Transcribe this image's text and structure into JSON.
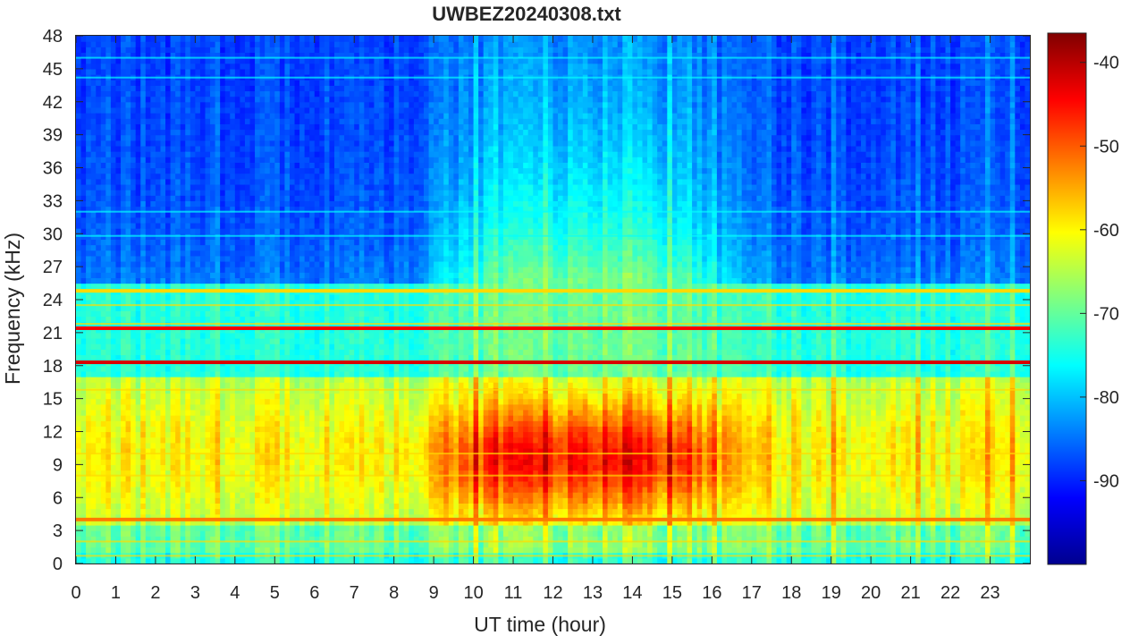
{
  "chart_data": {
    "type": "heatmap",
    "title": "UWBEZ20240308.txt",
    "xlabel": "UT time (hour)",
    "ylabel": "Frequency (kHz)",
    "xlim": [
      0,
      24
    ],
    "ylim": [
      0,
      48
    ],
    "x_ticks": [
      "0",
      "1",
      "2",
      "3",
      "4",
      "5",
      "6",
      "7",
      "8",
      "9",
      "10",
      "11",
      "12",
      "13",
      "14",
      "15",
      "16",
      "17",
      "18",
      "19",
      "20",
      "21",
      "22",
      "23"
    ],
    "y_ticks": [
      "0",
      "3",
      "6",
      "9",
      "12",
      "15",
      "18",
      "21",
      "24",
      "27",
      "30",
      "33",
      "36",
      "39",
      "42",
      "45",
      "48"
    ],
    "colorbar": {
      "colormap": "jet",
      "range": [
        -100,
        -36.5
      ],
      "ticks": [
        "-90",
        "-80",
        "-70",
        "-60",
        "-50",
        "-40"
      ]
    },
    "features": {
      "persistent_emission_lines_khz": [
        4.0,
        18.3,
        21.4,
        24.8
      ],
      "strong_broadband_activity": {
        "hours": [
          7.5,
          18.5
        ],
        "freq_khz": [
          4,
          17
        ],
        "peak_level_db": -48
      },
      "quiet_high_band_level_db": -88
    }
  }
}
